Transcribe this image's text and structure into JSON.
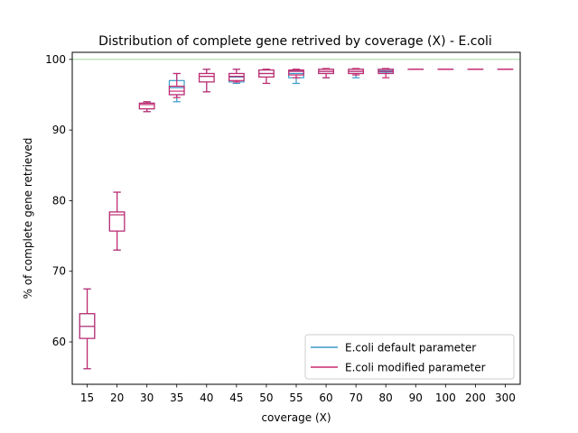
{
  "chart_data": {
    "type": "box",
    "title": "Distribution of complete gene retrived by coverage (X) - E.coli",
    "xlabel": "coverage (X)",
    "ylabel": "% of complete gene retrieved",
    "ylim": [
      54,
      101
    ],
    "yticks": [
      60,
      70,
      80,
      90,
      100
    ],
    "reference_line": {
      "y": 100,
      "color": "#8fd18f"
    },
    "categories": [
      "15",
      "20",
      "30",
      "35",
      "40",
      "45",
      "50",
      "55",
      "60",
      "70",
      "80",
      "90",
      "100",
      "200",
      "300"
    ],
    "legend": {
      "placement": "lower-right"
    },
    "series": [
      {
        "name": "E.coli default parameter",
        "color": "#3b9ac9",
        "boxes": [
          {
            "min": 56.2,
            "q1": 60.5,
            "median": 62.2,
            "q3": 64.0,
            "max": 67.5
          },
          {
            "min": 73.0,
            "q1": 75.7,
            "median": 78.0,
            "q3": 78.4,
            "max": 81.2
          },
          {
            "min": 92.6,
            "q1": 93.0,
            "median": 93.6,
            "q3": 93.8,
            "max": 94.0
          },
          {
            "min": 94.0,
            "q1": 95.0,
            "median": 96.0,
            "q3": 97.0,
            "max": 98.0
          },
          {
            "min": 95.4,
            "q1": 96.8,
            "median": 97.6,
            "q3": 98.0,
            "max": 98.6
          },
          {
            "min": 96.6,
            "q1": 96.8,
            "median": 97.5,
            "q3": 98.0,
            "max": 98.6
          },
          {
            "min": 96.6,
            "q1": 97.5,
            "median": 98.0,
            "q3": 98.5,
            "max": 98.6
          },
          {
            "min": 96.6,
            "q1": 97.4,
            "median": 98.0,
            "q3": 98.4,
            "max": 98.6
          },
          {
            "min": 97.4,
            "q1": 98.0,
            "median": 98.3,
            "q3": 98.6,
            "max": 98.7
          },
          {
            "min": 97.4,
            "q1": 98.0,
            "median": 98.3,
            "q3": 98.6,
            "max": 98.7
          },
          {
            "min": 98.0,
            "q1": 98.2,
            "median": 98.4,
            "q3": 98.6,
            "max": 98.7
          },
          {
            "min": 98.6,
            "q1": 98.6,
            "median": 98.6,
            "q3": 98.6,
            "max": 98.6
          },
          {
            "min": 98.6,
            "q1": 98.6,
            "median": 98.6,
            "q3": 98.6,
            "max": 98.6
          },
          {
            "min": 98.6,
            "q1": 98.6,
            "median": 98.6,
            "q3": 98.6,
            "max": 98.6
          },
          {
            "min": 98.6,
            "q1": 98.6,
            "median": 98.6,
            "q3": 98.6,
            "max": 98.6
          }
        ]
      },
      {
        "name": "E.coli modified parameter",
        "color": "#c8286e",
        "boxes": [
          {
            "min": 56.2,
            "q1": 60.5,
            "median": 62.2,
            "q3": 64.0,
            "max": 67.5
          },
          {
            "min": 73.0,
            "q1": 75.7,
            "median": 78.0,
            "q3": 78.4,
            "max": 81.2
          },
          {
            "min": 92.6,
            "q1": 93.0,
            "median": 93.6,
            "q3": 93.8,
            "max": 94.0
          },
          {
            "min": 94.6,
            "q1": 95.0,
            "median": 95.5,
            "q3": 96.2,
            "max": 98.0
          },
          {
            "min": 95.4,
            "q1": 96.8,
            "median": 97.6,
            "q3": 98.0,
            "max": 98.6
          },
          {
            "min": 96.8,
            "q1": 97.0,
            "median": 97.6,
            "q3": 98.0,
            "max": 98.6
          },
          {
            "min": 96.6,
            "q1": 97.5,
            "median": 98.0,
            "q3": 98.5,
            "max": 98.6
          },
          {
            "min": 97.4,
            "q1": 97.8,
            "median": 98.3,
            "q3": 98.5,
            "max": 98.6
          },
          {
            "min": 97.4,
            "q1": 98.0,
            "median": 98.3,
            "q3": 98.6,
            "max": 98.7
          },
          {
            "min": 97.8,
            "q1": 98.0,
            "median": 98.3,
            "q3": 98.6,
            "max": 98.7
          },
          {
            "min": 97.4,
            "q1": 98.0,
            "median": 98.3,
            "q3": 98.6,
            "max": 98.7
          },
          {
            "min": 98.6,
            "q1": 98.6,
            "median": 98.6,
            "q3": 98.6,
            "max": 98.6
          },
          {
            "min": 98.6,
            "q1": 98.6,
            "median": 98.6,
            "q3": 98.6,
            "max": 98.6
          },
          {
            "min": 98.6,
            "q1": 98.6,
            "median": 98.6,
            "q3": 98.6,
            "max": 98.6
          },
          {
            "min": 98.6,
            "q1": 98.6,
            "median": 98.6,
            "q3": 98.6,
            "max": 98.6
          }
        ]
      }
    ]
  }
}
